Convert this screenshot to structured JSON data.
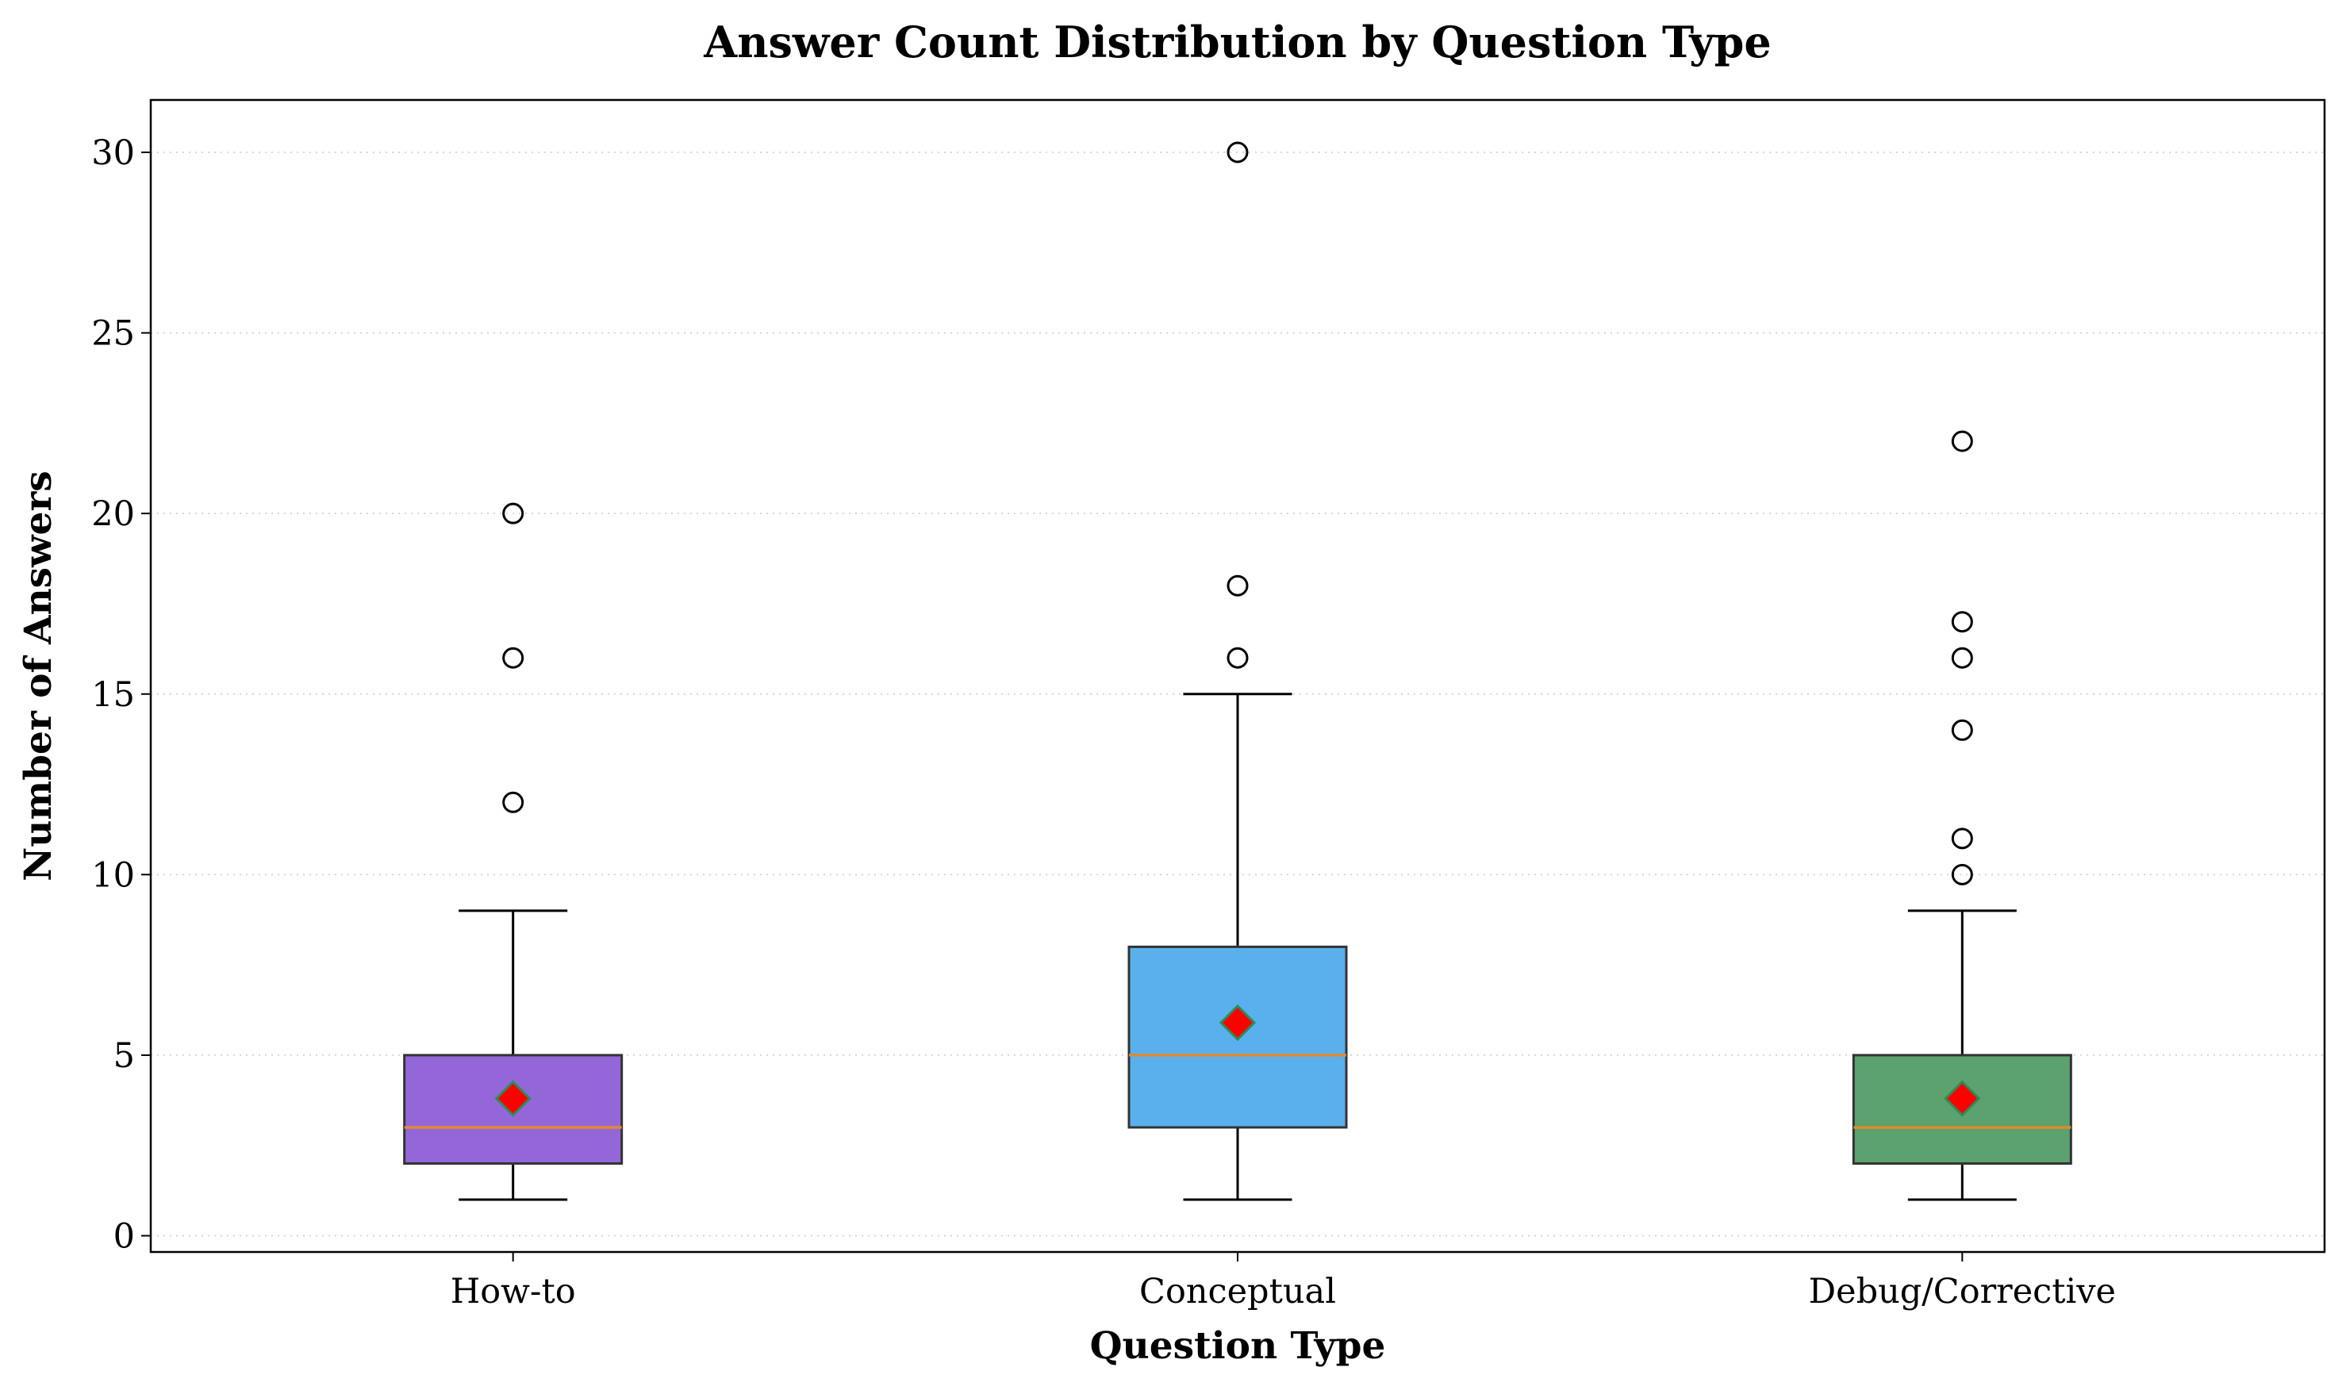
{
  "chart_data": {
    "type": "box",
    "title": "Answer Count Distribution by Question Type",
    "xlabel": "Question Type",
    "ylabel": "Number of Answers",
    "ylim": [
      -0.45,
      31.45
    ],
    "yticks": [
      0,
      5,
      10,
      15,
      20,
      25,
      30
    ],
    "grid": "horizontal dotted",
    "legend": "none",
    "mean_marker": {
      "shape": "diamond",
      "fill": "#ff0000",
      "edge": "#2e8b57"
    },
    "median_color": "#e08a2e",
    "categories": [
      "How-to",
      "Conceptual",
      "Debug/Corrective"
    ],
    "boxes": [
      {
        "label": "How-to",
        "color": "#9467d8",
        "whisker_low": 1,
        "q1": 2,
        "median": 3,
        "q3": 5,
        "whisker_high": 9,
        "mean": 3.8,
        "outliers": [
          12,
          16,
          20
        ]
      },
      {
        "label": "Conceptual",
        "color": "#5ab0ec",
        "whisker_low": 1,
        "q1": 3,
        "median": 5,
        "q3": 8,
        "whisker_high": 15,
        "mean": 5.9,
        "outliers": [
          16,
          18,
          30
        ]
      },
      {
        "label": "Debug/Corrective",
        "color": "#5ba26e",
        "whisker_low": 1,
        "q1": 2,
        "median": 3,
        "q3": 5,
        "whisker_high": 9,
        "mean": 3.8,
        "outliers": [
          10,
          11,
          14,
          16,
          17,
          22
        ]
      }
    ]
  }
}
